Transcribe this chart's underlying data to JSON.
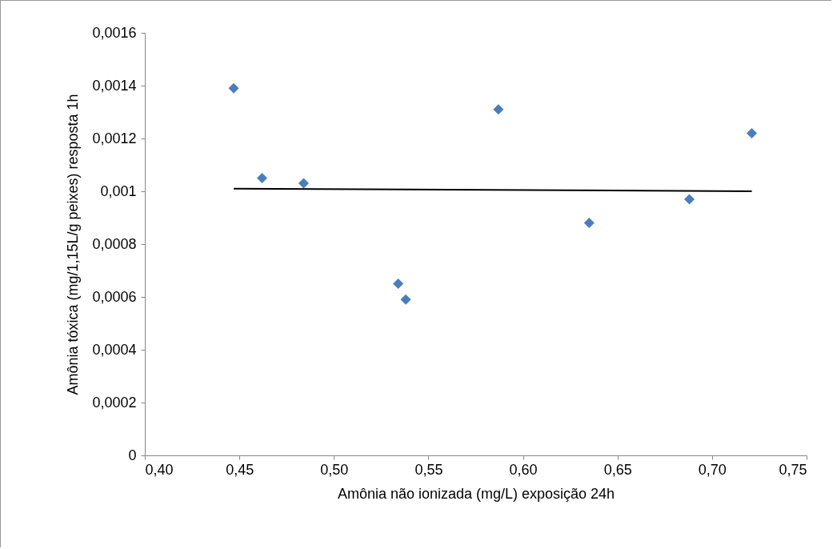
{
  "chart_data": {
    "type": "scatter",
    "xlabel": "Amônia não ionizada (mg/L) exposição 24h",
    "ylabel": "Amônia tóxica (mg/1,15L/g peixes) resposta 1h",
    "grid": false,
    "xlim": [
      0.4,
      0.75
    ],
    "xticks": [
      {
        "value": 0.4,
        "label": "0,40"
      },
      {
        "value": 0.45,
        "label": "0,45"
      },
      {
        "value": 0.5,
        "label": "0,50"
      },
      {
        "value": 0.55,
        "label": "0,55"
      },
      {
        "value": 0.6,
        "label": "0,60"
      },
      {
        "value": 0.65,
        "label": "0,65"
      },
      {
        "value": 0.7,
        "label": "0,70"
      },
      {
        "value": 0.75,
        "label": "0,75"
      }
    ],
    "ylim": [
      0,
      0.0016
    ],
    "yticks": [
      0,
      {
        "value": 0.0002,
        "label": "0,0002"
      },
      {
        "value": 0.0004,
        "label": "0,0004"
      },
      {
        "value": 0.0006,
        "label": "0,0006"
      },
      {
        "value": 0.0008,
        "label": "0,0008"
      },
      {
        "value": 0.001,
        "label": "0,001"
      },
      {
        "value": 0.0012,
        "label": "0,0012"
      },
      {
        "value": 0.0014,
        "label": "0,0014"
      },
      {
        "value": 0.0016,
        "label": "0,0016"
      }
    ],
    "series": [
      {
        "marker": "diamond",
        "color": "#4a7ebb",
        "x": [
          0.447,
          0.462,
          0.484,
          0.534,
          0.538,
          0.587,
          0.635,
          0.688,
          0.721
        ],
        "values": [
          0.00139,
          0.00105,
          0.00103,
          0.00065,
          0.00059,
          0.00131,
          0.00088,
          0.00097,
          0.00122
        ]
      },
      {
        "type": "line",
        "marker": "none",
        "color": "#000000",
        "x": [
          0.447,
          0.721
        ],
        "values": [
          0.00101,
          0.001
        ]
      }
    ]
  }
}
